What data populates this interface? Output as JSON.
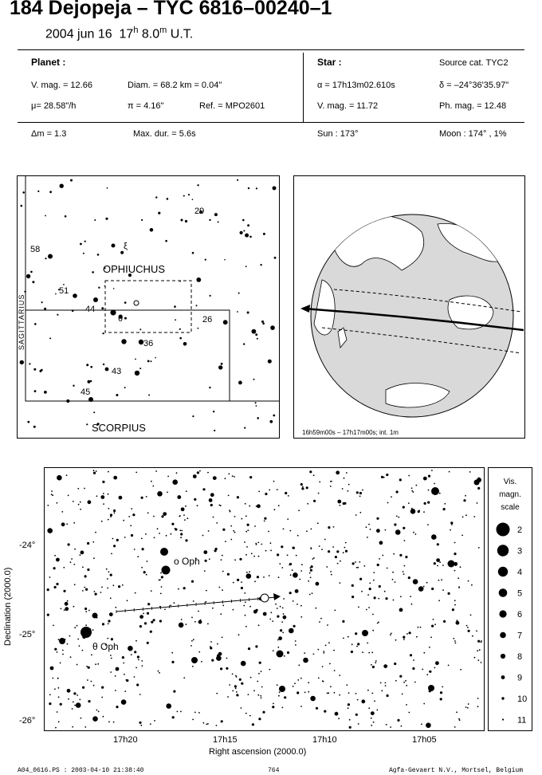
{
  "title": "184 Dejopeja  –  TYC 6816–00240–1",
  "date_line": {
    "date": "2004 jun 16",
    "hour": "17",
    "h_unit": "h",
    "minute": "8.0",
    "m_unit": "m",
    "ut": "U.T."
  },
  "planet": {
    "header": "Planet :",
    "vmag": "V. mag. = 12.66",
    "diam": "Diam. = 68.2 km = 0.04\"",
    "mu": "μ=  28.58\"/h",
    "pi": "π =  4.16\"",
    "ref": "Ref. = MPO2601"
  },
  "star": {
    "header": "Star :",
    "source": "Source cat.  TYC2",
    "alpha": "α = 17h13m02.610s",
    "delta": "δ = –24°36'35.97\"",
    "vmag": "V. mag. = 11.72",
    "phmag": "Ph. mag. = 12.48"
  },
  "bottom_row": {
    "dm": "Δm = 1.3",
    "maxdur": "Max. dur. = 5.6s",
    "sun": "Sun : 173°",
    "moon": "Moon : 174° ,  1%"
  },
  "finder": {
    "constellations": [
      "OPHIUCHUS",
      "SAGITTARIUS",
      "SCORPIUS"
    ],
    "labels": [
      "29",
      "58",
      "ξ",
      "51",
      "44",
      "θ",
      "26",
      "36",
      "43",
      "45"
    ]
  },
  "globe": {
    "caption": "16h59m00s – 17h17m00s; int.  1m",
    "colors": {
      "globe": "#d9d9d9",
      "track": "#000000"
    }
  },
  "detail": {
    "xlabel": "Right ascension (2000.0)",
    "ylabel": "Declination (2000.0)",
    "xticks": [
      "17h20",
      "17h15",
      "17h10",
      "17h05"
    ],
    "yticks": [
      "-24°",
      "-25°",
      "-26°"
    ],
    "labels": [
      "o Oph",
      "θ Oph"
    ]
  },
  "scale": {
    "title1": "Vis.",
    "title2": "magn.",
    "title3": "scale",
    "mags": [
      "2",
      "3",
      "4",
      "5",
      "6",
      "7",
      "8",
      "9",
      "10",
      "11"
    ]
  },
  "footer": {
    "left": "A04_0616.PS : 2003-04-10 21:38:40",
    "center": "764",
    "right": "Agfa-Gevaert N.V., Mortsel, Belgium"
  }
}
